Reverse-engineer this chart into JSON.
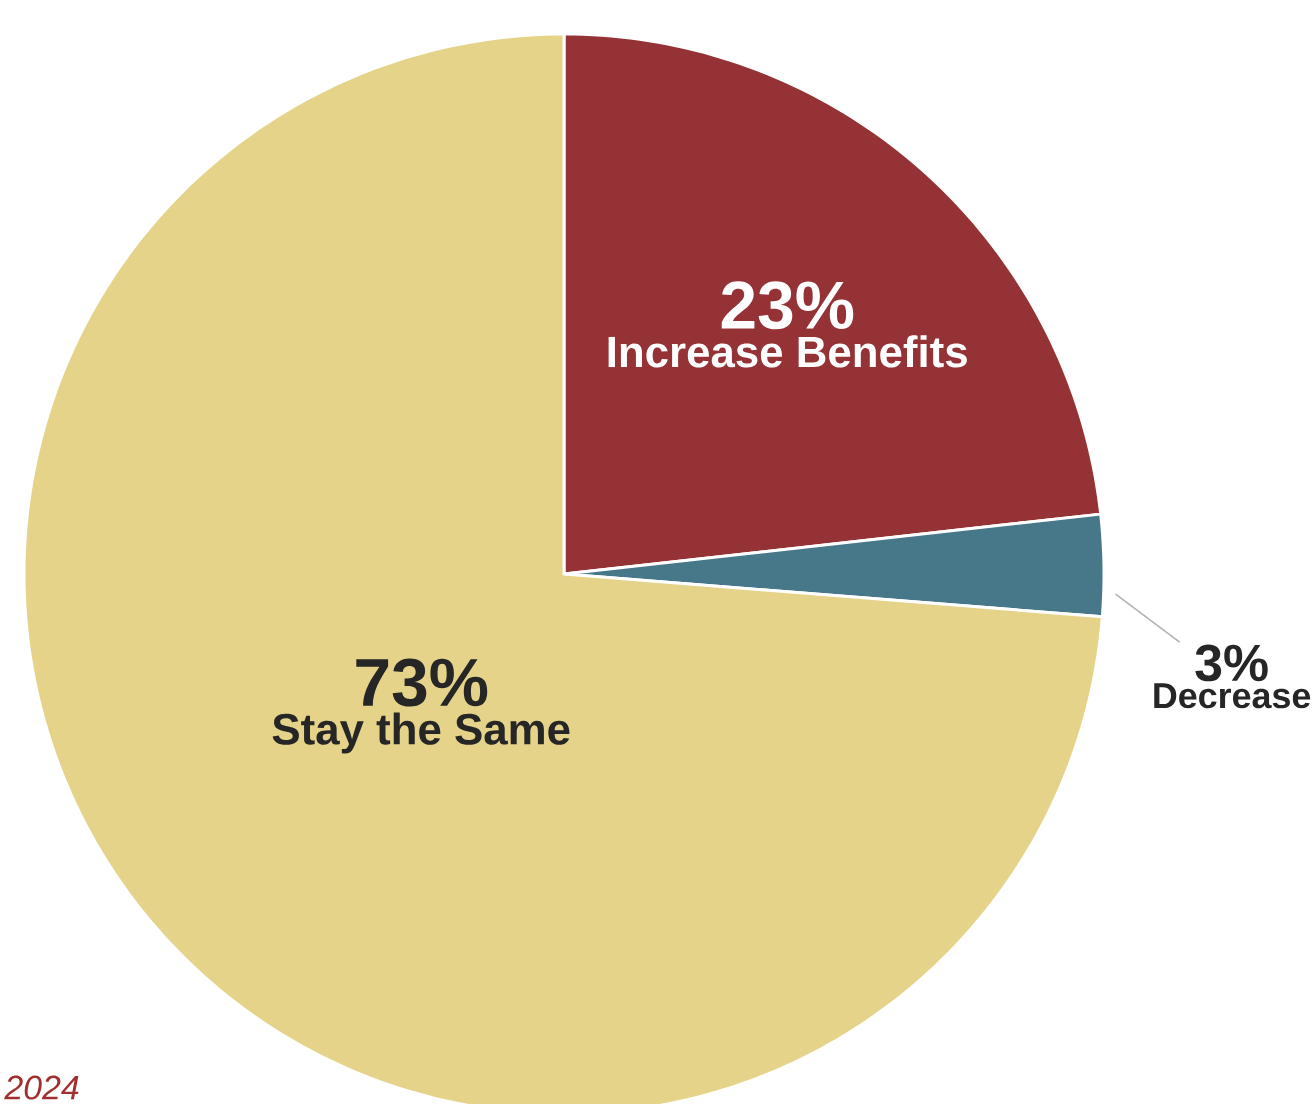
{
  "chart_data": {
    "type": "pie",
    "categories": [
      "Increase Benefits",
      "Decrease",
      "Stay the Same"
    ],
    "values": [
      23,
      3,
      73
    ],
    "value_labels": [
      "23%",
      "3%",
      "73%"
    ],
    "colors": [
      "#943235",
      "#47788a",
      "#e4d389"
    ],
    "annotations": [
      "2024"
    ]
  }
}
